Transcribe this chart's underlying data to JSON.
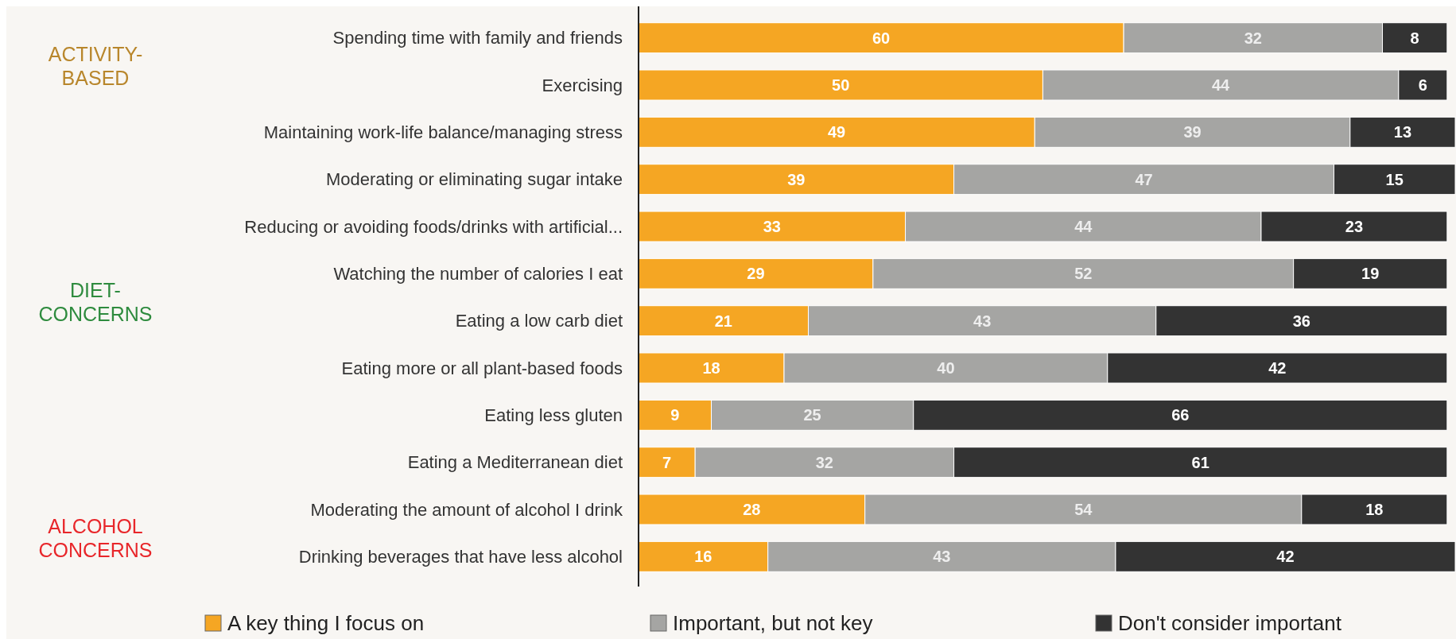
{
  "chart_data": {
    "type": "bar",
    "orientation": "horizontal",
    "stacked": true,
    "data_labels": true,
    "legend": "bottom",
    "categories": [
      "Spending time with family and friends",
      "Exercising",
      "Maintaining work-life balance/managing stress",
      "Moderating or eliminating sugar intake",
      "Reducing or avoiding foods/drinks with artificial...",
      "Watching the number of calories I eat",
      "Eating a low carb diet",
      "Eating more or all plant-based foods",
      "Eating less gluten",
      "Eating a Mediterranean diet",
      "Moderating the amount of alcohol I drink",
      "Drinking beverages that have less alcohol"
    ],
    "series": [
      {
        "name": "A key thing I focus on",
        "color": "#f5a623",
        "values": [
          60,
          50,
          49,
          39,
          33,
          29,
          21,
          18,
          9,
          7,
          28,
          16
        ]
      },
      {
        "name": "Important, but not key",
        "color": "#a5a5a3",
        "values": [
          32,
          44,
          39,
          47,
          44,
          52,
          43,
          40,
          25,
          32,
          54,
          43
        ]
      },
      {
        "name": "Don't consider important",
        "color": "#333333",
        "values": [
          8,
          6,
          13,
          15,
          23,
          19,
          36,
          42,
          66,
          61,
          18,
          42
        ]
      }
    ],
    "annotations": [
      "ACTIVITY-\nBASED",
      "DIET-\nCONCERNS",
      "ALCOHOL\nCONCERNS"
    ]
  }
}
